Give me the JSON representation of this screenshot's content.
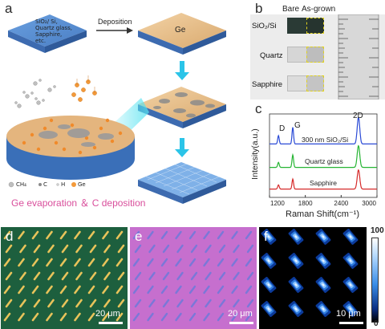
{
  "panels": {
    "a": {
      "label": "a",
      "substrate_text": [
        "SiO₂/ Si,",
        "Quartz glass,",
        "Sapphire,",
        "etc."
      ],
      "arrow_label": "Deposition",
      "ge_label": "Ge",
      "legend": [
        {
          "label": "CH₄",
          "icon": "methane-molecule-icon"
        },
        {
          "label": "C",
          "icon": "carbon-atom-icon"
        },
        {
          "label": "H",
          "icon": "hydrogen-atom-icon"
        },
        {
          "label": "Ge",
          "icon": "germanium-atom-icon"
        }
      ],
      "caption": "Ge evaporation ＆ C deposition",
      "colors": {
        "substrate": "#5b8fd1",
        "ge": "#e8c28f",
        "caption": "#d94f9c",
        "arrow": "#2bc4e8"
      }
    },
    "b": {
      "label": "b",
      "headers": [
        "Bare",
        "As-grown"
      ],
      "rows": [
        "SiO₂/Si",
        "Quartz",
        "Sapphire"
      ]
    },
    "c": {
      "label": "c",
      "peaks": [
        "D",
        "G",
        "2D"
      ],
      "series_labels": [
        "300 nm SiO₂/Si",
        "Quartz glass",
        "Sapphire"
      ]
    },
    "d": {
      "label": "d",
      "scale": "20 μm",
      "color": "#1d5f3e"
    },
    "e": {
      "label": "e",
      "scale": "20 μm",
      "color": "#c66fce"
    },
    "f": {
      "label": "f",
      "scale": "10 μm",
      "colorbar_max": "100",
      "colorbar_min": "0"
    }
  },
  "chart_data": {
    "type": "line",
    "xlabel": "Raman Shift(cm⁻¹)",
    "ylabel": "Intensity(a.u.)",
    "xlim": [
      1200,
      3000
    ],
    "xticks": [
      "1200",
      "1800",
      "2400",
      "3000"
    ],
    "grid": false,
    "series": [
      {
        "name": "300 nm SiO₂/Si",
        "color": "#2b4bd6",
        "baseline": 0.64,
        "peaks": [
          {
            "x": 1350,
            "h": 0.1
          },
          {
            "x": 1590,
            "h": 0.2
          },
          {
            "x": 2690,
            "h": 0.32
          }
        ]
      },
      {
        "name": "Quartz glass",
        "color": "#27b534",
        "baseline": 0.36,
        "peaks": [
          {
            "x": 1350,
            "h": 0.06
          },
          {
            "x": 1590,
            "h": 0.15
          },
          {
            "x": 2690,
            "h": 0.26
          }
        ]
      },
      {
        "name": "Sapphire",
        "color": "#d62b2b",
        "baseline": 0.1,
        "peaks": [
          {
            "x": 1350,
            "h": 0.05
          },
          {
            "x": 1590,
            "h": 0.12
          },
          {
            "x": 2690,
            "h": 0.23
          }
        ]
      }
    ]
  }
}
